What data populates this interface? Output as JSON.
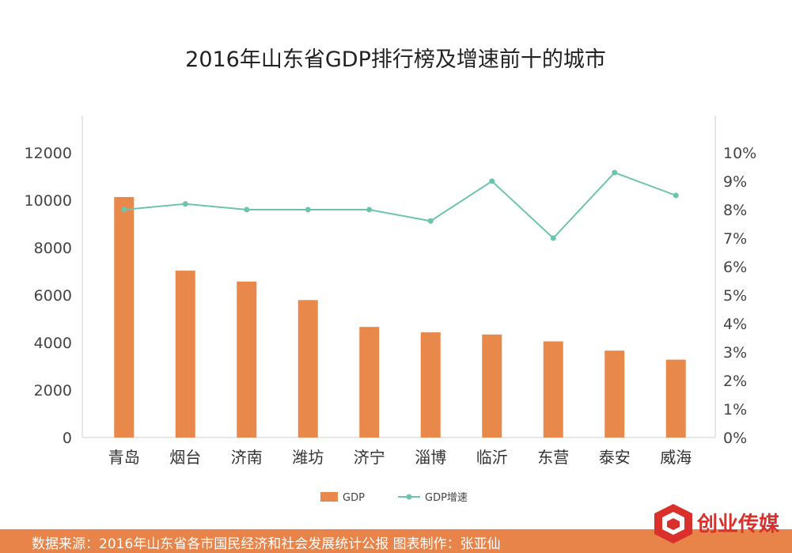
{
  "chart_data": {
    "type": "bar",
    "title": "2016年山东省GDP排行榜及增速前十的城市",
    "categories": [
      "青岛",
      "烟台",
      "济南",
      "潍坊",
      "济宁",
      "淄博",
      "临沂",
      "东营",
      "泰安",
      "威海"
    ],
    "series": [
      {
        "name": "GDP",
        "type": "bar",
        "axis": "left",
        "color": "#e8884a",
        "values": [
          10130,
          7030,
          6570,
          5790,
          4660,
          4430,
          4340,
          4050,
          3660,
          3280
        ]
      },
      {
        "name": "GDP增速",
        "type": "line",
        "axis": "right",
        "color": "#6dc4ae",
        "values": [
          8.0,
          8.2,
          8.0,
          8.0,
          8.0,
          7.6,
          9.0,
          7.0,
          9.3,
          8.5
        ]
      }
    ],
    "y_left": {
      "min": 0,
      "max": 12000,
      "ticks": [
        "0",
        "2000",
        "4000",
        "6000",
        "8000",
        "10000",
        "12000"
      ]
    },
    "y_right": {
      "min": 0,
      "max": 10,
      "ticks": [
        "0%",
        "1%",
        "2%",
        "3%",
        "4%",
        "5%",
        "6%",
        "7%",
        "8%",
        "9%",
        "10%"
      ]
    },
    "grid": false,
    "legend": "bottom-center"
  },
  "footer": {
    "source": "数据来源：2016年山东省各市国民经济和社会发展统计公报  图表制作：张亚仙"
  },
  "brand": {
    "name": "创业传媒",
    "color": "#d9302c"
  }
}
